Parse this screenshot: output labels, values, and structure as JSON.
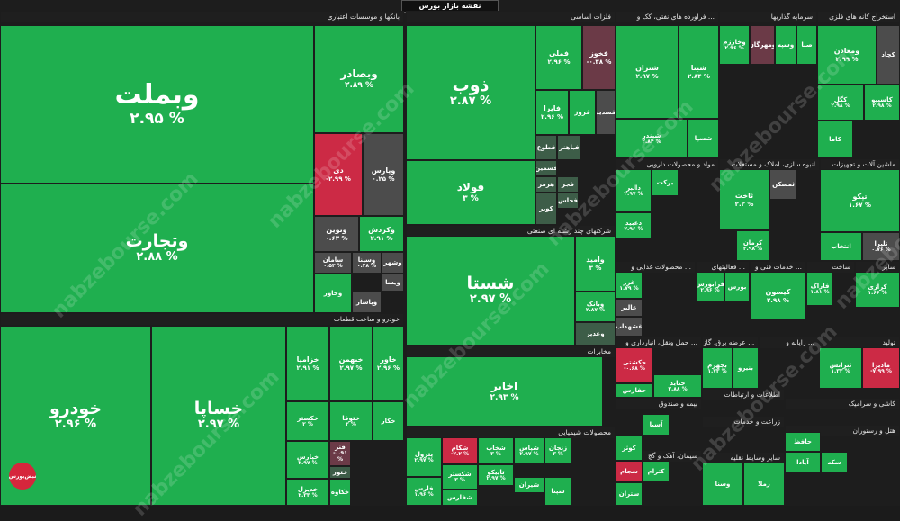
{
  "map_title": "نقشه بازار بورس",
  "watermark": "nabzebourse.com",
  "logo_text": "نبض‌بورس",
  "colors": {
    "positive": "#1faf4f",
    "neutral": "#4c4c4c",
    "negative": "#cc2a45",
    "dark": "#3d5d48"
  },
  "sectors": [
    {
      "id": "banks",
      "label": "بانکها و موسسات اعتباری"
    },
    {
      "id": "autoparts",
      "label": "خودرو و ساخت قطعات"
    },
    {
      "id": "metals",
      "label": "فلزات اساسی"
    },
    {
      "id": "investment",
      "label": "شرکتهای چند رشته ای صنعتی"
    },
    {
      "id": "telecom",
      "label": "مخابرات"
    },
    {
      "id": "chemical",
      "label": "محصولات شیمیایی"
    },
    {
      "id": "oil",
      "label": "فراورده های نفتی، کک و ..."
    },
    {
      "id": "funds",
      "label": "سرمایه گذاریها"
    },
    {
      "id": "mining",
      "label": "استخراج کانه های فلزی"
    },
    {
      "id": "pharma",
      "label": "مواد و محصولات دارویی"
    },
    {
      "id": "realestate",
      "label": "انبوه سازی، املاک و مستغلات"
    },
    {
      "id": "machinery",
      "label": "ماشین آلات و تجهیزات"
    },
    {
      "id": "food",
      "label": "محصولات غذایی و ..."
    },
    {
      "id": "activities",
      "label": "فعالیتهای ..."
    },
    {
      "id": "services",
      "label": "خدمات فنی و ..."
    },
    {
      "id": "construction",
      "label": "ساخت"
    },
    {
      "id": "other",
      "label": "سایر"
    },
    {
      "id": "transport",
      "label": "حمل ونقل، انبارداری و ..."
    },
    {
      "id": "electric",
      "label": "عرضه برق، گاز ..."
    },
    {
      "id": "computer",
      "label": "رایانه و ..."
    },
    {
      "id": "production",
      "label": "تولید"
    },
    {
      "id": "insurance",
      "label": "بیمه و صندوق"
    },
    {
      "id": "it",
      "label": "اطلاعات و ارتباطات"
    },
    {
      "id": "tile",
      "label": "کاشی و سرامیک"
    },
    {
      "id": "cement",
      "label": "سیمان، آهک و گچ"
    },
    {
      "id": "agri",
      "label": "زراعت و خدمات"
    },
    {
      "id": "hotel",
      "label": "هتل و رستوران"
    },
    {
      "id": "vehicles",
      "label": "سایر وسایط نقلیه"
    }
  ],
  "tiles": [
    {
      "sym": "وبملت",
      "pct": "۲.۹۵ %"
    },
    {
      "sym": "وبصادر",
      "pct": "۲.۸۹ %"
    },
    {
      "sym": "دی",
      "pct": "-۲.۹۹ %"
    },
    {
      "sym": "وپارس",
      "pct": "۰.۲۵ %"
    },
    {
      "sym": "وتجارت",
      "pct": "۲.۸۸ %"
    },
    {
      "sym": "ونوین",
      "pct": "۰.۶۳ %"
    },
    {
      "sym": "وکردش",
      "pct": "۲.۹۱ %"
    },
    {
      "sym": "سامان",
      "pct": "۰.۵۳ %"
    },
    {
      "sym": "وسینا",
      "pct": "۰.۴۸ %"
    },
    {
      "sym": "وشهر",
      "pct": ""
    },
    {
      "sym": "وخاور",
      "pct": ""
    },
    {
      "sym": "ویسا",
      "pct": ""
    },
    {
      "sym": "وپاسار",
      "pct": ""
    },
    {
      "sym": "خودرو",
      "pct": "۲.۹۶ %"
    },
    {
      "sym": "خساپا",
      "pct": "۲.۹۷ %"
    },
    {
      "sym": "خزامیا",
      "pct": "۲.۹۱ %"
    },
    {
      "sym": "خبهمن",
      "pct": "۲.۹۷ %"
    },
    {
      "sym": "خاور",
      "pct": "۲.۹۶ %"
    },
    {
      "sym": "خکستر",
      "pct": "۲ %"
    },
    {
      "sym": "ختوقا",
      "pct": "۲ %"
    },
    {
      "sym": "خکار",
      "pct": ""
    },
    {
      "sym": "خپارس",
      "pct": "۲.۹۷ %"
    },
    {
      "sym": "فنر",
      "pct": "-۰.۹۱ %"
    },
    {
      "sym": "ختور",
      "pct": ""
    },
    {
      "sym": "خدیزل",
      "pct": "۲.۳۳ %"
    },
    {
      "sym": "خکاوه",
      "pct": ""
    },
    {
      "sym": "ذوب",
      "pct": "۲.۸۷ %"
    },
    {
      "sym": "فملی",
      "pct": "۲.۹۶ %"
    },
    {
      "sym": "فخوز",
      "pct": "-۰.۳۸ %"
    },
    {
      "sym": "فایرا",
      "pct": "۲.۹۶ %"
    },
    {
      "sym": "فروز",
      "pct": ""
    },
    {
      "sym": "فسدید",
      "pct": ""
    },
    {
      "sym": "فولاد",
      "pct": "۳ %"
    },
    {
      "sym": "فطوع",
      "pct": ""
    },
    {
      "sym": "فباهنر",
      "pct": ""
    },
    {
      "sym": "فسمین",
      "pct": ""
    },
    {
      "sym": "هرمز",
      "pct": ""
    },
    {
      "sym": "فجر",
      "pct": ""
    },
    {
      "sym": "فخاس",
      "pct": ""
    },
    {
      "sym": "کویر",
      "pct": ""
    },
    {
      "sym": "شستا",
      "pct": "۲.۹۷ %"
    },
    {
      "sym": "وامید",
      "pct": "۳ %"
    },
    {
      "sym": "وبانک",
      "pct": "۲.۸۷ %"
    },
    {
      "sym": "وغدیر",
      "pct": ""
    },
    {
      "sym": "اخابر",
      "pct": "۲.۹۳ %"
    },
    {
      "sym": "پترول",
      "pct": "۲.۹۷ %"
    },
    {
      "sym": "شکام",
      "pct": "-۲.۲ %"
    },
    {
      "sym": "شخاب",
      "pct": "۳ %"
    },
    {
      "sym": "شپاس",
      "pct": "۲.۹۷ %"
    },
    {
      "sym": "زنجان",
      "pct": "۳ %"
    },
    {
      "sym": "شکستر",
      "pct": "۳ %"
    },
    {
      "sym": "تاپیکو",
      "pct": "۲.۹۷ %"
    },
    {
      "sym": "فارس",
      "pct": "۱.۹۶ %"
    },
    {
      "sym": "شفارس",
      "pct": ""
    },
    {
      "sym": "شیران",
      "pct": ""
    },
    {
      "sym": "شپنا",
      "pct": ""
    },
    {
      "sym": "شتران",
      "pct": "۲.۹۷ %"
    },
    {
      "sym": "شبنا",
      "pct": "۲.۸۴ %"
    },
    {
      "sym": "شبندر",
      "pct": "۲.۸۴ %"
    },
    {
      "sym": "شسپا",
      "pct": ""
    },
    {
      "sym": "وخارزم",
      "pct": "۲.۹۶ %"
    },
    {
      "sym": "وسپه",
      "pct": ""
    },
    {
      "sym": "ومهرگان",
      "pct": ""
    },
    {
      "sym": "صبا",
      "pct": ""
    },
    {
      "sym": "ومعادن",
      "pct": "۲.۹۹ %"
    },
    {
      "sym": "کچاد",
      "pct": ""
    },
    {
      "sym": "کگل",
      "pct": "۲.۹۸ %"
    },
    {
      "sym": "کاسپیو",
      "pct": "۲.۹۸ %"
    },
    {
      "sym": "کاما",
      "pct": ""
    },
    {
      "sym": "تپکو",
      "pct": "۱.۶۷ %"
    },
    {
      "sym": "تلیرا",
      "pct": "۰.۷۶ %"
    },
    {
      "sym": "انتخاب",
      "pct": ""
    },
    {
      "sym": "ثاخت",
      "pct": "۲.۲ %"
    },
    {
      "sym": "ثمسکن",
      "pct": ""
    },
    {
      "sym": "کرمان",
      "pct": "۲.۹۸ %"
    },
    {
      "sym": "دالبر",
      "pct": "۲.۹۷ %"
    },
    {
      "sym": "دعبید",
      "pct": "۲.۹۶ %"
    },
    {
      "sym": "برکت",
      "pct": ""
    },
    {
      "sym": "غزر",
      "pct": "۱.۷۹ %"
    },
    {
      "sym": "غالبر",
      "pct": ""
    },
    {
      "sym": "غشهداب",
      "pct": ""
    },
    {
      "sym": "کیسون",
      "pct": "۲.۹۸ %"
    },
    {
      "sym": "فاراک",
      "pct": "۱.۸۱ %"
    },
    {
      "sym": "کرازی",
      "pct": "۱.۶۶ %"
    },
    {
      "sym": "فرابورس",
      "pct": "۲.۹۶ %"
    },
    {
      "sym": "بورس",
      "pct": ""
    },
    {
      "sym": "حکشتی",
      "pct": "-۰.۶۸ %"
    },
    {
      "sym": "حفارس",
      "pct": ""
    },
    {
      "sym": "حتاید",
      "pct": "۲.۸۸ %"
    },
    {
      "sym": "بجهرم",
      "pct": "۱.۷۳ %"
    },
    {
      "sym": "بنیرو",
      "pct": ""
    },
    {
      "sym": "مادیرا",
      "pct": "-۷.۹۹ %"
    },
    {
      "sym": "ثترانس",
      "pct": "۱.۳۳ %"
    },
    {
      "sym": "سجام",
      "pct": ""
    },
    {
      "sym": "ستران",
      "pct": ""
    },
    {
      "sym": "کترام",
      "pct": ""
    },
    {
      "sym": "وسنا",
      "pct": ""
    },
    {
      "sym": "زملا",
      "pct": ""
    },
    {
      "sym": "حافظ",
      "pct": ""
    },
    {
      "sym": "آسیا",
      "pct": ""
    },
    {
      "sym": "کوثر",
      "pct": ""
    },
    {
      "sym": "آبادا",
      "pct": ""
    },
    {
      "sym": "سکه",
      "pct": ""
    }
  ]
}
